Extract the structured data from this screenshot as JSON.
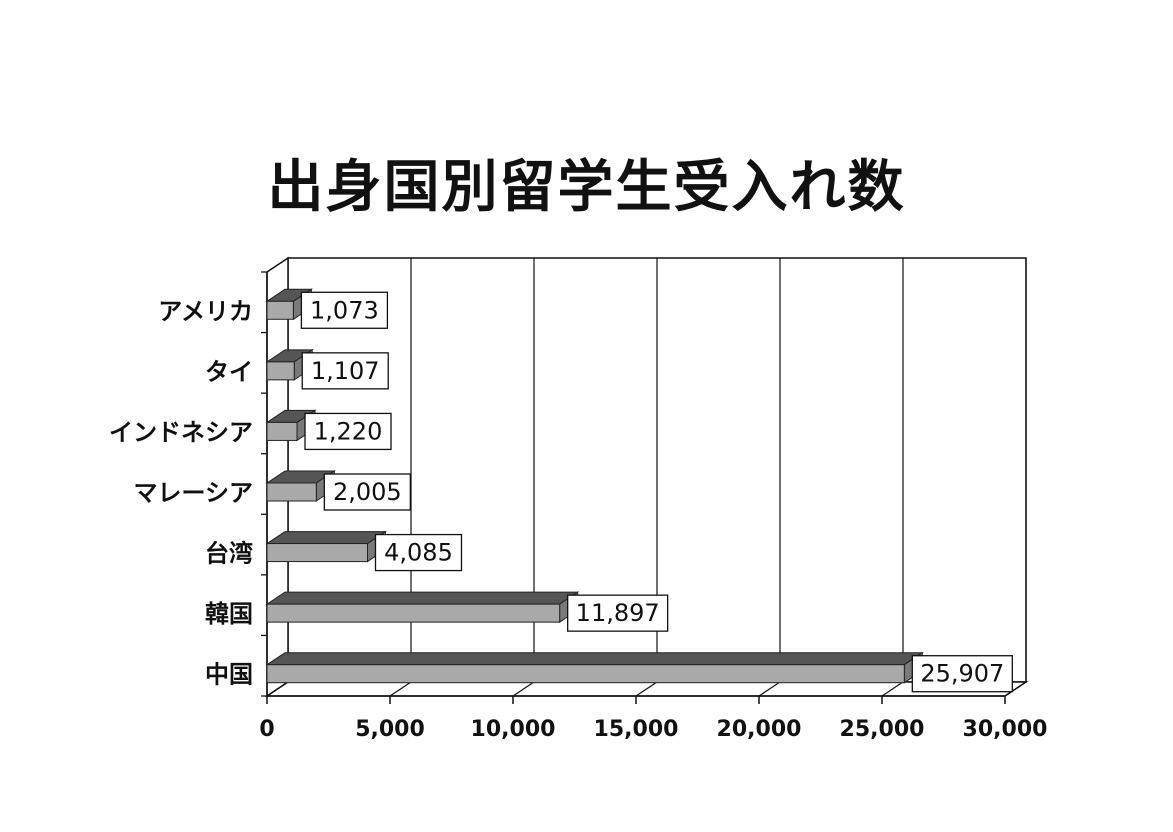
{
  "chart_data": {
    "type": "bar",
    "orientation": "horizontal",
    "title": "出身国別留学生受入れ数",
    "categories": [
      "アメリカ",
      "タイ",
      "インドネシア",
      "マレーシア",
      "台湾",
      "韓国",
      "中国"
    ],
    "values": [
      1073,
      1107,
      1220,
      2005,
      4085,
      11897,
      25907
    ],
    "data_labels": [
      "1,073",
      "1,107",
      "1,220",
      "2,005",
      "4,085",
      "11,897",
      "25,907"
    ],
    "xlim": [
      0,
      30000
    ],
    "x_ticks": [
      0,
      5000,
      10000,
      15000,
      20000,
      25000,
      30000
    ],
    "x_tick_labels": [
      "0",
      "5,000",
      "10,000",
      "15,000",
      "20,000",
      "25,000",
      "30,000"
    ],
    "xlabel": "",
    "ylabel": "",
    "grid": true,
    "style": "3d",
    "colors": {
      "bar_front": "#a9a9a9",
      "bar_top": "#555555",
      "bar_end": "#7a7a7a",
      "axis": "#111111"
    }
  }
}
